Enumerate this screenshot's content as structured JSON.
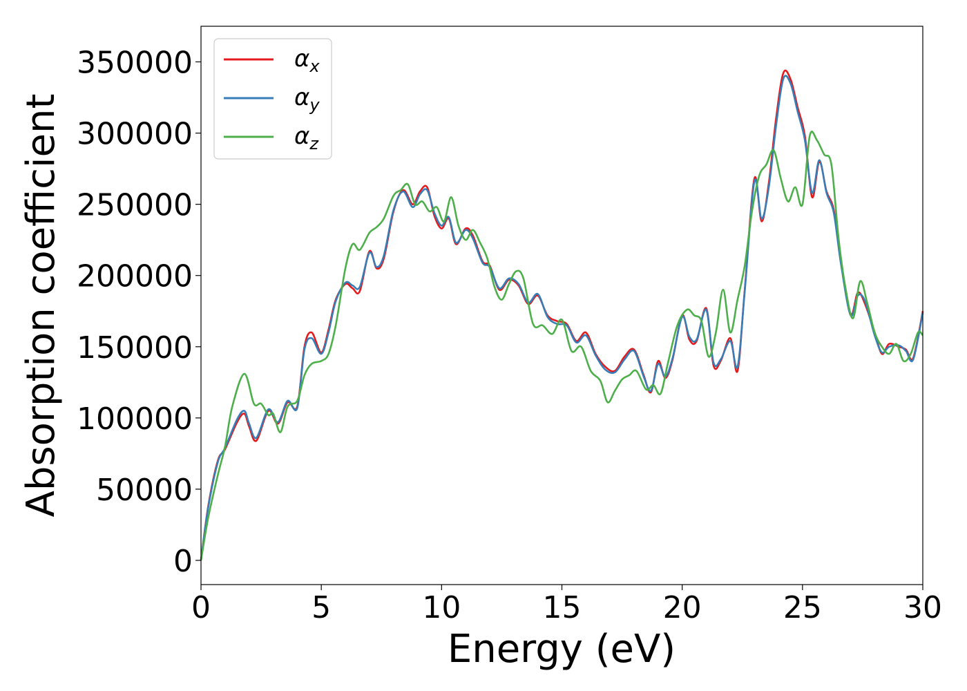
{
  "chart_data": {
    "type": "line",
    "xlabel": "Energy (eV)",
    "ylabel": "Absorption coefficient",
    "xlim": [
      0,
      30
    ],
    "ylim": [
      -17000,
      375000
    ],
    "xticks": [
      0,
      5,
      10,
      15,
      20,
      25,
      30
    ],
    "xtick_labels": [
      "0",
      "5",
      "10",
      "15",
      "20",
      "25",
      "30"
    ],
    "yticks": [
      0,
      50000,
      100000,
      150000,
      200000,
      250000,
      300000,
      350000
    ],
    "ytick_labels": [
      "0",
      "50000",
      "100000",
      "150000",
      "200000",
      "250000",
      "300000",
      "350000"
    ],
    "grid": false,
    "legend_position": "top-left",
    "series": [
      {
        "name": "αx",
        "symbol": "α",
        "subscript": "x",
        "color": "#e41a1c",
        "x": [
          0,
          0.3,
          0.7,
          1.0,
          1.5,
          1.8,
          2.0,
          2.3,
          2.8,
          3.2,
          3.6,
          4.0,
          4.3,
          4.6,
          5.0,
          5.3,
          5.6,
          6.0,
          6.3,
          6.6,
          7.0,
          7.3,
          7.6,
          8.0,
          8.4,
          8.8,
          9.1,
          9.4,
          9.7,
          10.0,
          10.3,
          10.6,
          11.0,
          11.3,
          11.7,
          12.0,
          12.4,
          12.8,
          13.2,
          13.6,
          14.0,
          14.4,
          14.8,
          15.2,
          15.6,
          16.0,
          16.4,
          16.8,
          17.2,
          17.6,
          18.0,
          18.4,
          18.7,
          19.0,
          19.3,
          19.6,
          20.0,
          20.3,
          20.6,
          21.0,
          21.3,
          21.6,
          22.0,
          22.3,
          22.6,
          23.0,
          23.3,
          23.6,
          23.9,
          24.2,
          24.5,
          24.8,
          25.1,
          25.4,
          25.7,
          26.0,
          26.3,
          26.6,
          27.0,
          27.3,
          27.6,
          28.0,
          28.3,
          28.6,
          29.0,
          29.3,
          29.6,
          30.0
        ],
        "values": [
          0,
          38000,
          70000,
          78000,
          97000,
          103000,
          94000,
          84000,
          105000,
          96000,
          111000,
          108000,
          150000,
          160000,
          146000,
          162000,
          183000,
          194000,
          191000,
          189000,
          217000,
          205000,
          212000,
          245000,
          260000,
          250000,
          259000,
          262000,
          242000,
          233000,
          240000,
          222000,
          233000,
          228000,
          210000,
          207000,
          190000,
          197000,
          193000,
          180000,
          186000,
          172000,
          168000,
          166000,
          154000,
          160000,
          145000,
          136000,
          133000,
          143000,
          148000,
          130000,
          118000,
          140000,
          128000,
          141000,
          172000,
          155000,
          154000,
          177000,
          137000,
          140000,
          156000,
          133000,
          190000,
          268000,
          238000,
          265000,
          310000,
          342000,
          338000,
          318000,
          298000,
          255000,
          280000,
          259000,
          246000,
          210000,
          173000,
          188000,
          180000,
          160000,
          145000,
          152000,
          150000,
          148000,
          142000,
          175000
        ]
      },
      {
        "name": "αy",
        "symbol": "α",
        "subscript": "y",
        "color": "#377eb8",
        "x": [
          0,
          0.3,
          0.7,
          1.0,
          1.5,
          1.8,
          2.0,
          2.3,
          2.8,
          3.2,
          3.6,
          4.0,
          4.3,
          4.6,
          5.0,
          5.3,
          5.6,
          6.0,
          6.3,
          6.6,
          7.0,
          7.3,
          7.6,
          8.0,
          8.4,
          8.8,
          9.1,
          9.4,
          9.7,
          10.0,
          10.3,
          10.6,
          11.0,
          11.3,
          11.7,
          12.0,
          12.4,
          12.8,
          13.2,
          13.6,
          14.0,
          14.4,
          14.8,
          15.2,
          15.6,
          16.0,
          16.4,
          16.8,
          17.2,
          17.6,
          18.0,
          18.4,
          18.7,
          19.0,
          19.3,
          19.6,
          20.0,
          20.3,
          20.6,
          21.0,
          21.3,
          21.6,
          22.0,
          22.3,
          22.6,
          23.0,
          23.3,
          23.6,
          23.9,
          24.2,
          24.5,
          24.8,
          25.1,
          25.4,
          25.7,
          26.0,
          26.3,
          26.6,
          27.0,
          27.3,
          27.6,
          28.0,
          28.3,
          28.6,
          29.0,
          29.3,
          29.6,
          30.0
        ],
        "values": [
          0,
          37000,
          69000,
          79000,
          99000,
          105000,
          96000,
          86000,
          106000,
          97000,
          112000,
          107000,
          148000,
          156000,
          145000,
          160000,
          182000,
          195000,
          193000,
          192000,
          216000,
          206000,
          214000,
          246000,
          259000,
          248000,
          257000,
          260000,
          244000,
          235000,
          241000,
          223000,
          232000,
          226000,
          209000,
          206000,
          191000,
          198000,
          194000,
          181000,
          187000,
          171000,
          166000,
          165000,
          153000,
          158000,
          144000,
          134000,
          132000,
          141000,
          147000,
          129000,
          119000,
          138000,
          129000,
          142000,
          171000,
          157000,
          155000,
          176000,
          139000,
          141000,
          154000,
          136000,
          189000,
          266000,
          240000,
          262000,
          305000,
          338000,
          335000,
          315000,
          295000,
          258000,
          281000,
          258000,
          244000,
          208000,
          172000,
          186000,
          182000,
          158000,
          146000,
          150000,
          151000,
          147000,
          141000,
          174000
        ]
      },
      {
        "name": "αz",
        "symbol": "α",
        "subscript": "z",
        "color": "#4daf4a",
        "x": [
          0,
          0.3,
          0.7,
          1.0,
          1.3,
          1.8,
          2.2,
          2.5,
          2.8,
          3.0,
          3.3,
          3.6,
          4.0,
          4.3,
          4.6,
          5.0,
          5.3,
          5.6,
          6.0,
          6.3,
          6.6,
          7.0,
          7.3,
          7.6,
          8.0,
          8.3,
          8.6,
          8.9,
          9.2,
          9.5,
          9.8,
          10.1,
          10.4,
          10.7,
          11.0,
          11.3,
          11.6,
          11.9,
          12.2,
          12.5,
          12.8,
          13.1,
          13.4,
          13.8,
          14.2,
          14.6,
          15.0,
          15.4,
          15.8,
          16.2,
          16.6,
          16.9,
          17.2,
          17.5,
          17.8,
          18.1,
          18.5,
          18.8,
          19.1,
          19.4,
          19.8,
          20.2,
          20.5,
          20.8,
          21.1,
          21.4,
          21.7,
          22.0,
          22.3,
          22.6,
          22.9,
          23.2,
          23.5,
          23.8,
          24.1,
          24.4,
          24.7,
          25.0,
          25.3,
          25.6,
          25.9,
          26.2,
          26.5,
          26.8,
          27.1,
          27.4,
          27.7,
          28.0,
          28.3,
          28.6,
          28.9,
          29.2,
          29.5,
          29.8,
          30.0
        ],
        "values": [
          0,
          30000,
          60000,
          80000,
          108000,
          131000,
          110000,
          110000,
          102000,
          103000,
          90000,
          108000,
          112000,
          130000,
          138000,
          140000,
          145000,
          165000,
          205000,
          222000,
          218000,
          230000,
          234000,
          240000,
          256000,
          260000,
          264000,
          250000,
          252000,
          245000,
          248000,
          238000,
          255000,
          235000,
          225000,
          232000,
          223000,
          212000,
          192000,
          183000,
          194000,
          203000,
          198000,
          166000,
          165000,
          159000,
          169000,
          147000,
          150000,
          133000,
          126000,
          111000,
          119000,
          127000,
          130000,
          133000,
          120000,
          123000,
          117000,
          138000,
          165000,
          176000,
          172000,
          168000,
          143000,
          160000,
          190000,
          160000,
          183000,
          207000,
          245000,
          270000,
          278000,
          288000,
          268000,
          252000,
          262000,
          250000,
          298000,
          295000,
          285000,
          278000,
          226000,
          190000,
          170000,
          196000,
          180000,
          160000,
          150000,
          145000,
          152000,
          140000,
          145000,
          160000,
          158000
        ]
      }
    ]
  }
}
